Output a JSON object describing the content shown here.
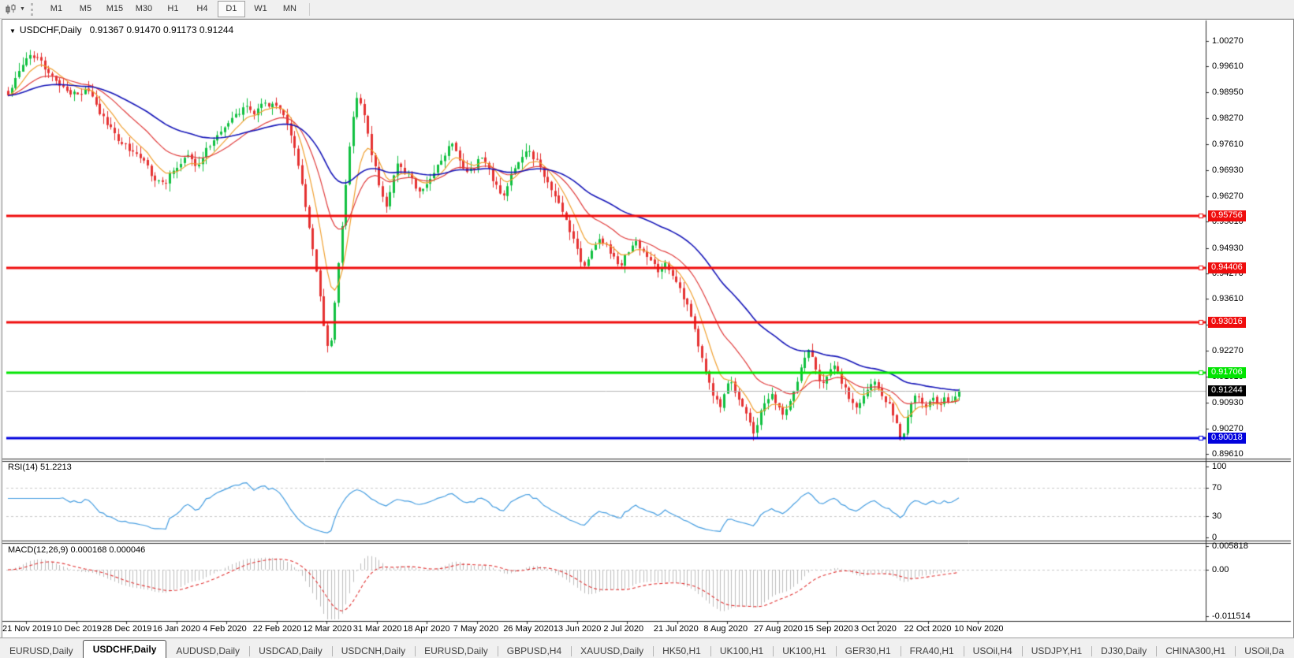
{
  "toolbar": {
    "timeframes": [
      {
        "label": "M1",
        "active": false
      },
      {
        "label": "M5",
        "active": false
      },
      {
        "label": "M15",
        "active": false
      },
      {
        "label": "M30",
        "active": false
      },
      {
        "label": "H1",
        "active": false
      },
      {
        "label": "H4",
        "active": false
      },
      {
        "label": "D1",
        "active": true
      },
      {
        "label": "W1",
        "active": false
      },
      {
        "label": "MN",
        "active": false
      }
    ],
    "dropdown_glyph": "▼"
  },
  "header": {
    "dropdown_glyph": "▼",
    "symbol": "USDCHF,Daily",
    "ohlc": "0.91367 0.91470 0.91173 0.91244"
  },
  "tabs": {
    "scroll_left_glyph": "◄",
    "scroll_right_glyph": "►",
    "items": [
      {
        "label": "EURUSD,Daily",
        "active": false
      },
      {
        "label": "USDCHF,Daily",
        "active": true
      },
      {
        "label": "AUDUSD,Daily",
        "active": false
      },
      {
        "label": "USDCAD,Daily",
        "active": false
      },
      {
        "label": "USDCNH,Daily",
        "active": false
      },
      {
        "label": "EURUSD,Daily",
        "active": false
      },
      {
        "label": "GBPUSD,H4",
        "active": false
      },
      {
        "label": "XAUUSD,Daily",
        "active": false
      },
      {
        "label": "HK50,H1",
        "active": false
      },
      {
        "label": "UK100,H1",
        "active": false
      },
      {
        "label": "UK100,H1",
        "active": false
      },
      {
        "label": "GER30,H1",
        "active": false
      },
      {
        "label": "FRA40,H1",
        "active": false
      },
      {
        "label": "USOil,H4",
        "active": false
      },
      {
        "label": "USDJPY,H1",
        "active": false
      },
      {
        "label": "DJ30,Daily",
        "active": false
      },
      {
        "label": "CHINA300,H1",
        "active": false
      },
      {
        "label": "USOil,Da",
        "active": false
      }
    ]
  },
  "chart_data": {
    "type": "candlestick",
    "symbol": "USDCHF",
    "timeframe": "Daily",
    "ohlc_display": {
      "open": 0.91367,
      "high": 0.9147,
      "low": 0.91173,
      "close": 0.91244
    },
    "style": {
      "bull_color": "#10c040",
      "bear_color": "#e53232",
      "background": "#ffffff",
      "axis_color": "#2b2b2b",
      "grid_dash_color": "#c9c9c9"
    },
    "y_axis": {
      "visible_range": [
        0.89511,
        1.00738
      ],
      "ticks": [
        {
          "label": "1.00270",
          "value": 1.0027
        },
        {
          "label": "0.99610",
          "value": 0.9961
        },
        {
          "label": "0.98950",
          "value": 0.9895
        },
        {
          "label": "0.98270",
          "value": 0.9827
        },
        {
          "label": "0.97610",
          "value": 0.9761
        },
        {
          "label": "0.96930",
          "value": 0.9693
        },
        {
          "label": "0.96270",
          "value": 0.9627
        },
        {
          "label": "0.95610",
          "value": 0.9561
        },
        {
          "label": "0.94930",
          "value": 0.9493
        },
        {
          "label": "0.94270",
          "value": 0.9427
        },
        {
          "label": "0.93610",
          "value": 0.9361
        },
        {
          "label": "0.92950",
          "value": 0.9295
        },
        {
          "label": "0.92270",
          "value": 0.9227
        },
        {
          "label": "0.91610",
          "value": 0.9161
        },
        {
          "label": "0.90930",
          "value": 0.9093
        },
        {
          "label": "0.90270",
          "value": 0.9027
        },
        {
          "label": "0.89610",
          "value": 0.8961
        }
      ]
    },
    "x_axis": {
      "labels": [
        "21 Nov 2019",
        "10 Dec 2019",
        "28 Dec 2019",
        "16 Jan 2020",
        "4 Feb 2020",
        "22 Feb 2020",
        "12 Mar 2020",
        "31 Mar 2020",
        "18 Apr 2020",
        "7 May 2020",
        "26 May 2020",
        "13 Jun 2020",
        "2 Jul 2020",
        "21 Jul 2020",
        "8 Aug 2020",
        "27 Aug 2020",
        "15 Sep 2020",
        "3 Oct 2020",
        "22 Oct 2020",
        "10 Nov 2020"
      ],
      "bars": 260
    },
    "horizontal_lines": [
      {
        "label": "0.95756",
        "price": 0.95756,
        "color": "#ef0d0d",
        "width": 3
      },
      {
        "label": "0.94406",
        "price": 0.94406,
        "color": "#ef0d0d",
        "width": 3
      },
      {
        "label": "0.93016",
        "price": 0.93016,
        "color": "#ef0d0d",
        "width": 3
      },
      {
        "label": "0.91706",
        "price": 0.91706,
        "color": "#00e400",
        "width": 3
      },
      {
        "label": "0.90018",
        "price": 0.90018,
        "color": "#0202dd",
        "width": 3
      }
    ],
    "current_price": {
      "label": "0.91244",
      "value": 0.91244,
      "line_color": "#b6b6b6",
      "badge_bg": "#000000"
    },
    "moving_averages": [
      {
        "name": "fast-ma",
        "period": 8,
        "color": "#f0a030"
      },
      {
        "name": "mid-ma",
        "period": 21,
        "color": "#e03c3c"
      },
      {
        "name": "slow-ma",
        "period": 50,
        "color": "#1616b8"
      }
    ],
    "markers": [
      {
        "frac": 0.9375,
        "price": 0.9015,
        "glyph": "↑"
      },
      {
        "frac": 0.9455,
        "price": 0.902,
        "glyph": "↑"
      }
    ],
    "price_path_anchors": [
      [
        0.0,
        0.989
      ],
      [
        0.01,
        0.9935
      ],
      [
        0.023,
        0.9995
      ],
      [
        0.033,
        0.9975
      ],
      [
        0.046,
        0.9935
      ],
      [
        0.062,
        0.99
      ],
      [
        0.075,
        0.9888
      ],
      [
        0.085,
        0.9905
      ],
      [
        0.098,
        0.9833
      ],
      [
        0.11,
        0.98
      ],
      [
        0.12,
        0.976
      ],
      [
        0.132,
        0.974
      ],
      [
        0.145,
        0.9705
      ],
      [
        0.155,
        0.967
      ],
      [
        0.163,
        0.9655
      ],
      [
        0.172,
        0.969
      ],
      [
        0.182,
        0.9715
      ],
      [
        0.19,
        0.9735
      ],
      [
        0.199,
        0.97
      ],
      [
        0.208,
        0.9745
      ],
      [
        0.216,
        0.9775
      ],
      [
        0.225,
        0.9795
      ],
      [
        0.232,
        0.9815
      ],
      [
        0.242,
        0.984
      ],
      [
        0.252,
        0.986
      ],
      [
        0.261,
        0.984
      ],
      [
        0.268,
        0.987
      ],
      [
        0.275,
        0.985
      ],
      [
        0.283,
        0.987
      ],
      [
        0.29,
        0.984
      ],
      [
        0.298,
        0.978
      ],
      [
        0.306,
        0.969
      ],
      [
        0.313,
        0.96
      ],
      [
        0.32,
        0.95
      ],
      [
        0.327,
        0.938
      ],
      [
        0.333,
        0.928
      ],
      [
        0.338,
        0.922
      ],
      [
        0.344,
        0.936
      ],
      [
        0.35,
        0.952
      ],
      [
        0.356,
        0.968
      ],
      [
        0.362,
        0.982
      ],
      [
        0.368,
        0.989
      ],
      [
        0.374,
        0.984
      ],
      [
        0.38,
        0.976
      ],
      [
        0.386,
        0.97
      ],
      [
        0.392,
        0.964
      ],
      [
        0.398,
        0.96
      ],
      [
        0.404,
        0.966
      ],
      [
        0.41,
        0.972
      ],
      [
        0.418,
        0.969
      ],
      [
        0.426,
        0.966
      ],
      [
        0.434,
        0.963
      ],
      [
        0.442,
        0.966
      ],
      [
        0.45,
        0.97
      ],
      [
        0.458,
        0.973
      ],
      [
        0.466,
        0.976
      ],
      [
        0.474,
        0.972
      ],
      [
        0.482,
        0.968
      ],
      [
        0.49,
        0.97
      ],
      [
        0.498,
        0.973
      ],
      [
        0.506,
        0.969
      ],
      [
        0.514,
        0.965
      ],
      [
        0.52,
        0.9625
      ],
      [
        0.528,
        0.968
      ],
      [
        0.536,
        0.972
      ],
      [
        0.544,
        0.9745
      ],
      [
        0.552,
        0.973
      ],
      [
        0.56,
        0.97
      ],
      [
        0.568,
        0.966
      ],
      [
        0.576,
        0.963
      ],
      [
        0.584,
        0.9585
      ],
      [
        0.592,
        0.953
      ],
      [
        0.599,
        0.948
      ],
      [
        0.606,
        0.944
      ],
      [
        0.613,
        0.948
      ],
      [
        0.62,
        0.952
      ],
      [
        0.628,
        0.95
      ],
      [
        0.636,
        0.947
      ],
      [
        0.644,
        0.945
      ],
      [
        0.652,
        0.948
      ],
      [
        0.66,
        0.951
      ],
      [
        0.668,
        0.948
      ],
      [
        0.676,
        0.9455
      ],
      [
        0.684,
        0.9435
      ],
      [
        0.692,
        0.9455
      ],
      [
        0.7,
        0.942
      ],
      [
        0.708,
        0.938
      ],
      [
        0.716,
        0.933
      ],
      [
        0.724,
        0.926
      ],
      [
        0.732,
        0.918
      ],
      [
        0.74,
        0.912
      ],
      [
        0.748,
        0.908
      ],
      [
        0.754,
        0.913
      ],
      [
        0.76,
        0.9155
      ],
      [
        0.766,
        0.911
      ],
      [
        0.772,
        0.908
      ],
      [
        0.778,
        0.905
      ],
      [
        0.784,
        0.9015
      ],
      [
        0.79,
        0.906
      ],
      [
        0.796,
        0.909
      ],
      [
        0.802,
        0.9115
      ],
      [
        0.808,
        0.9085
      ],
      [
        0.814,
        0.906
      ],
      [
        0.82,
        0.909
      ],
      [
        0.826,
        0.9125
      ],
      [
        0.832,
        0.9165
      ],
      [
        0.838,
        0.9205
      ],
      [
        0.843,
        0.923
      ],
      [
        0.849,
        0.9185
      ],
      [
        0.855,
        0.9145
      ],
      [
        0.861,
        0.9165
      ],
      [
        0.868,
        0.9185
      ],
      [
        0.874,
        0.916
      ],
      [
        0.88,
        0.913
      ],
      [
        0.886,
        0.91
      ],
      [
        0.892,
        0.908
      ],
      [
        0.898,
        0.911
      ],
      [
        0.904,
        0.913
      ],
      [
        0.91,
        0.915
      ],
      [
        0.916,
        0.912
      ],
      [
        0.922,
        0.91
      ],
      [
        0.928,
        0.908
      ],
      [
        0.934,
        0.905
      ],
      [
        0.939,
        0.8985
      ],
      [
        0.944,
        0.904
      ],
      [
        0.949,
        0.909
      ],
      [
        0.955,
        0.912
      ],
      [
        0.961,
        0.91
      ],
      [
        0.967,
        0.908
      ],
      [
        0.973,
        0.911
      ],
      [
        0.979,
        0.909
      ],
      [
        0.985,
        0.9105
      ],
      [
        0.991,
        0.9095
      ],
      [
        1.0,
        0.9124
      ]
    ],
    "indicators": {
      "rsi": {
        "display": "RSI(14) 51.2213",
        "period": 14,
        "value": 51.2213,
        "color": "#459de0",
        "axis": [
          {
            "label": "100",
            "value": 100
          },
          {
            "label": "70",
            "value": 70
          },
          {
            "label": "30",
            "value": 30
          },
          {
            "label": "0",
            "value": 0
          }
        ],
        "dashed_levels": [
          70,
          30
        ]
      },
      "macd": {
        "display": "MACD(12,26,9) 0.000168 0.000046",
        "fast": 12,
        "slow": 26,
        "signal": 9,
        "main_value": 0.000168,
        "signal_value": 4.6e-05,
        "histogram_color": "#bdbdbd",
        "signal_color": "#e03030",
        "axis": [
          {
            "label": "0.005818",
            "value": 0.005818
          },
          {
            "label": "0.00",
            "value": 0
          },
          {
            "label": "-0.011514",
            "value": -0.011514
          }
        ],
        "dashed_levels": [
          0
        ]
      }
    }
  }
}
